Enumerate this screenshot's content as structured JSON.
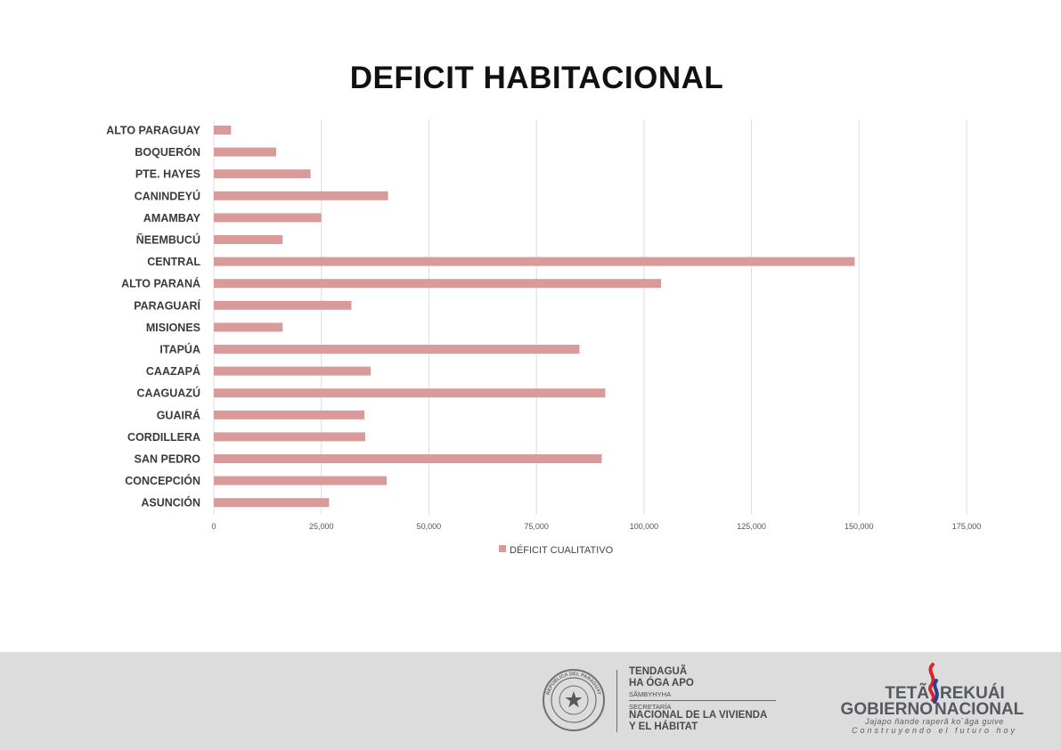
{
  "chart_data": {
    "type": "bar",
    "orientation": "horizontal",
    "title": "DEFICIT HABITACIONAL",
    "categories": [
      "ALTO PARAGUAY",
      "BOQUERÓN",
      "PTE. HAYES",
      "CANINDEYÚ",
      "AMAMBAY",
      "ÑEEMBUCÚ",
      "CENTRAL",
      "ALTO PARANÁ",
      "PARAGUARÍ",
      "MISIONES",
      "ITAPÚA",
      "CAAZAPÁ",
      "CAAGUAZÚ",
      "GUAIRÁ",
      "CORDILLERA",
      "SAN PEDRO",
      "CONCEPCIÓN",
      "ASUNCIÓN"
    ],
    "series": [
      {
        "name": "DÉFICIT CUALITATIVO",
        "color": "#d99a9a",
        "values": [
          4000,
          14500,
          22500,
          40500,
          25000,
          16000,
          149000,
          104000,
          32000,
          16000,
          85000,
          36500,
          91000,
          35000,
          35200,
          90200,
          40200,
          26800
        ]
      }
    ],
    "xlim": [
      0,
      175000
    ],
    "xticks": [
      0,
      25000,
      50000,
      75000,
      100000,
      125000,
      150000,
      175000
    ],
    "xtick_labels": [
      "0",
      "25,000",
      "50,000",
      "75,000",
      "100,000",
      "125,000",
      "150,000",
      "175,000"
    ],
    "grid": true,
    "legend_position": "bottom"
  },
  "footer": {
    "secretaria": {
      "line1": "TENDAGUÃ",
      "line2": "HA ÓGA APO",
      "line3": "SÃMBYHYHA",
      "line4": "SECRETARÍA",
      "line5": "NACIONAL DE LA VIVIENDA",
      "line6": "Y EL HÁBITAT"
    },
    "seal_text": "REPÚBLICA DEL PARAGUAY",
    "gobierno": {
      "line1a": "TETÃ",
      "line1b": "REKUÁI",
      "line2a": "GOBIERNO",
      "line2b": "NACIONAL",
      "slogan1": "Jajapo ñande raperã ko`ãga guive",
      "slogan2": "Construyendo el futuro hoy"
    }
  }
}
